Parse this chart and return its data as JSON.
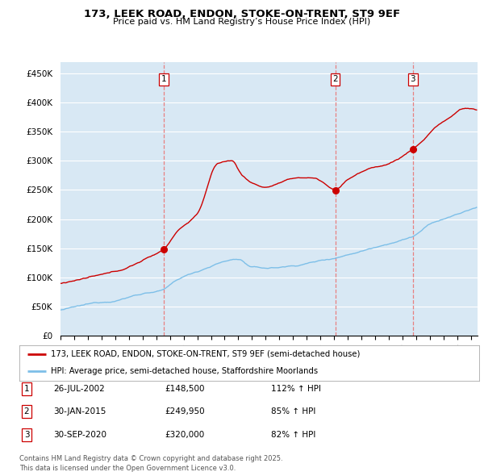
{
  "title_line1": "173, LEEK ROAD, ENDON, STOKE-ON-TRENT, ST9 9EF",
  "title_line2": "Price paid vs. HM Land Registry’s House Price Index (HPI)",
  "ylim_min": 0,
  "ylim_max": 470000,
  "yticks": [
    0,
    50000,
    100000,
    150000,
    200000,
    250000,
    300000,
    350000,
    400000,
    450000
  ],
  "ytick_labels": [
    "£0",
    "£50K",
    "£100K",
    "£150K",
    "£200K",
    "£250K",
    "£300K",
    "£350K",
    "£400K",
    "£450K"
  ],
  "sale_dates": [
    2002.567,
    2015.083,
    2020.748
  ],
  "sale_prices": [
    148500,
    249950,
    320000
  ],
  "sale_labels": [
    "1",
    "2",
    "3"
  ],
  "hpi_color": "#7dbfe8",
  "price_color": "#cc0000",
  "vline_color": "#e88080",
  "plot_bg_color": "#d8e8f4",
  "legend_line1": "173, LEEK ROAD, ENDON, STOKE-ON-TRENT, ST9 9EF (semi-detached house)",
  "legend_line2": "HPI: Average price, semi-detached house, Staffordshire Moorlands",
  "table_data": [
    [
      "1",
      "26-JUL-2002",
      "£148,500",
      "112% ↑ HPI"
    ],
    [
      "2",
      "30-JAN-2015",
      "£249,950",
      "85% ↑ HPI"
    ],
    [
      "3",
      "30-SEP-2020",
      "£320,000",
      "82% ↑ HPI"
    ]
  ],
  "footnote": "Contains HM Land Registry data © Crown copyright and database right 2025.\nThis data is licensed under the Open Government Licence v3.0.",
  "xlim_start": 1995.0,
  "xlim_end": 2025.5
}
